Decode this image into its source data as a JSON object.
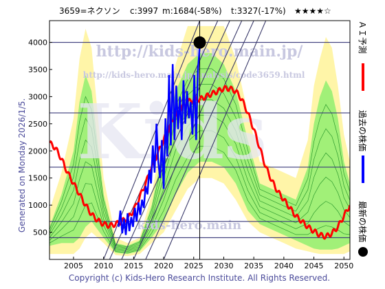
{
  "header": {
    "code_name": "3659=ネクソン",
    "current": "c:3997",
    "min_stat": "m:1684(-58%)",
    "target_stat": "t:3327(-17%)",
    "stars": "★★★★☆"
  },
  "side_note": "Generated on Monday 2026/1/5.",
  "footer": "Copyright (c) Kids-Hero Research Institute. All Rights Reserved.",
  "watermarks": {
    "url_main": "http://kids-hero.main.jp/",
    "url_analysis": "http://kids-hero.main.jp/analysis/code3659.html",
    "big_text": "Kids",
    "bottom_text": "kids-hero.main"
  },
  "legend": [
    {
      "label": "ＡＩ予測",
      "color": "#ff0000",
      "kind": "line"
    },
    {
      "label": "過去の株価",
      "color": "#0000ff",
      "kind": "line"
    },
    {
      "label": "最新の株価",
      "color": "#000000",
      "kind": "dot"
    }
  ],
  "colors": {
    "ai_line": "#ff0000",
    "price_line": "#0000ff",
    "band_outer": "#fff5a8",
    "band_inner": "#90ee70",
    "band_lines": "#2e9a2e",
    "trend_lines": "#3a3a6a",
    "h_lines": "#3a3a7a",
    "border": "#000000"
  },
  "chart_data": {
    "type": "line",
    "xlim": [
      2001,
      2051
    ],
    "ylim": [
      0,
      4400
    ],
    "x_ticks": [
      2005,
      2010,
      2015,
      2020,
      2025,
      2030,
      2035,
      2040,
      2045,
      2050
    ],
    "y_ticks": [
      500,
      1000,
      1500,
      2000,
      2500,
      3000,
      3500,
      4000
    ],
    "horizontal_lines": [
      4000,
      2700,
      1700,
      700,
      400
    ],
    "vertical_line": 2026,
    "latest_point": {
      "x": 2026,
      "y": 3997
    },
    "ai_prediction": {
      "x": [
        2001,
        2002,
        2003,
        2004,
        2005,
        2006,
        2007,
        2008,
        2009,
        2010,
        2011,
        2012,
        2013,
        2014,
        2015,
        2016,
        2017,
        2018,
        2019,
        2020,
        2021,
        2022,
        2023,
        2024,
        2025,
        2026,
        2027,
        2028,
        2029,
        2030,
        2031,
        2032,
        2033,
        2034,
        2035,
        2036,
        2037,
        2038,
        2039,
        2040,
        2041,
        2042,
        2043,
        2044,
        2045,
        2046,
        2047,
        2048,
        2049,
        2050,
        2051
      ],
      "y": [
        2150,
        2050,
        1850,
        1600,
        1400,
        1200,
        1000,
        830,
        720,
        650,
        620,
        650,
        700,
        760,
        900,
        1150,
        1400,
        1700,
        1950,
        2200,
        2450,
        2650,
        2800,
        2900,
        2950,
        2950,
        3000,
        3050,
        3100,
        3150,
        3150,
        3100,
        2950,
        2700,
        2400,
        2050,
        1700,
        1450,
        1250,
        1100,
        950,
        800,
        700,
        600,
        520,
        450,
        420,
        480,
        600,
        800,
        1000
      ]
    },
    "past_price": {
      "x": [
        2012.5,
        2012.8,
        2013.1,
        2013.4,
        2013.7,
        2014.0,
        2014.3,
        2014.6,
        2014.9,
        2015.2,
        2015.5,
        2015.8,
        2016.1,
        2016.4,
        2016.7,
        2017.0,
        2017.3,
        2017.6,
        2017.9,
        2018.2,
        2018.5,
        2018.8,
        2019.1,
        2019.4,
        2019.7,
        2020.0,
        2020.3,
        2020.6,
        2020.9,
        2021.2,
        2021.5,
        2021.8,
        2022.1,
        2022.4,
        2022.7,
        2023.0,
        2023.3,
        2023.6,
        2023.9,
        2024.2,
        2024.5,
        2024.8,
        2025.1,
        2025.4,
        2025.7,
        2026.0
      ],
      "y": [
        600,
        900,
        480,
        750,
        450,
        850,
        520,
        780,
        600,
        950,
        700,
        1050,
        820,
        1100,
        950,
        1350,
        1200,
        1650,
        1400,
        2100,
        1600,
        2500,
        1800,
        1500,
        2200,
        1300,
        2600,
        1900,
        3400,
        2100,
        3600,
        2200,
        3200,
        2400,
        3000,
        2200,
        3300,
        2500,
        3100,
        2600,
        2900,
        2300,
        3400,
        2200,
        3500,
        3900
      ]
    },
    "band_outer": {
      "x": [
        2001,
        2003,
        2005,
        2006,
        2007,
        2008,
        2010,
        2012,
        2014,
        2016,
        2018,
        2020,
        2022,
        2024,
        2026,
        2028,
        2030,
        2032,
        2034,
        2036,
        2038,
        2040,
        2042,
        2044,
        2045,
        2046,
        2047,
        2048,
        2049,
        2050,
        2051
      ],
      "upper": [
        900,
        1600,
        2600,
        3700,
        4250,
        3900,
        1500,
        400,
        300,
        400,
        1200,
        2400,
        3600,
        4300,
        4300,
        4300,
        4300,
        3700,
        2700,
        1800,
        1700,
        1600,
        1500,
        2200,
        3200,
        3700,
        4100,
        3900,
        3200,
        2300,
        1800
      ],
      "lower": [
        100,
        100,
        100,
        200,
        400,
        500,
        300,
        80,
        60,
        100,
        300,
        500,
        900,
        1300,
        1500,
        1500,
        1400,
        1100,
        700,
        500,
        400,
        300,
        200,
        150,
        120,
        100,
        100,
        100,
        100,
        100,
        150
      ]
    },
    "band_inner": {
      "x": [
        2001,
        2003,
        2005,
        2006,
        2007,
        2008,
        2010,
        2012,
        2014,
        2016,
        2018,
        2020,
        2022,
        2024,
        2026,
        2028,
        2030,
        2032,
        2034,
        2036,
        2038,
        2040,
        2042,
        2044,
        2045,
        2046,
        2047,
        2048,
        2049,
        2050,
        2051
      ],
      "upper": [
        600,
        1200,
        2000,
        2900,
        3400,
        3100,
        1200,
        300,
        250,
        350,
        1000,
        2100,
        3100,
        3600,
        3800,
        3800,
        3600,
        3100,
        2200,
        1400,
        1300,
        1200,
        1100,
        1700,
        2500,
        3000,
        3300,
        3100,
        2600,
        1800,
        1400
      ],
      "lower": [
        250,
        300,
        300,
        400,
        600,
        700,
        400,
        120,
        100,
        150,
        400,
        700,
        1200,
        1600,
        1800,
        1800,
        1700,
        1400,
        900,
        650,
        550,
        450,
        350,
        250,
        200,
        180,
        180,
        180,
        200,
        250,
        300
      ]
    },
    "trend_line_slopes": [
      {
        "x": [
          2010,
          2026
        ],
        "y": [
          0,
          4400
        ]
      },
      {
        "x": [
          2011,
          2029
        ],
        "y": [
          0,
          4400
        ]
      },
      {
        "x": [
          2013,
          2031
        ],
        "y": [
          0,
          4400
        ]
      },
      {
        "x": [
          2015,
          2033
        ],
        "y": [
          0,
          4400
        ]
      },
      {
        "x": [
          2017,
          2035
        ],
        "y": [
          0,
          4400
        ]
      },
      {
        "x": [
          2020,
          2037
        ],
        "y": [
          0,
          4400
        ]
      }
    ]
  }
}
